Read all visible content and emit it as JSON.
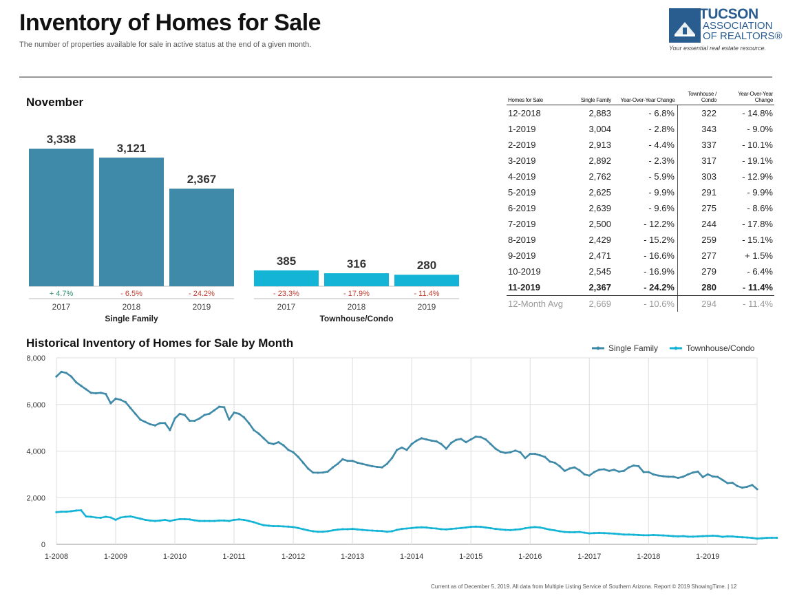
{
  "header": {
    "title": "Inventory of Homes for Sale",
    "subtitle": "The number of properties available for sale in active status at the end of a given month.",
    "logo": {
      "line1": "TUCSON",
      "line2": "ASSOCIATION",
      "line3": "OF REALTORS®",
      "tagline": "Your essential real estate resource."
    }
  },
  "colors": {
    "single_family": "#3e8aa8",
    "townhouse": "#14b4d6",
    "grid": "#dddddd"
  },
  "bar_section": {
    "month": "November"
  },
  "table": {
    "headers": [
      "Homes for Sale",
      "Single Family",
      "Year-Over-Year Change",
      "Townhouse / Condo",
      "Year-Over-Year Change"
    ],
    "rows": [
      [
        "12-2018",
        "2,883",
        "- 6.8%",
        "322",
        "- 14.8%"
      ],
      [
        "1-2019",
        "3,004",
        "- 2.8%",
        "343",
        "- 9.0%"
      ],
      [
        "2-2019",
        "2,913",
        "- 4.4%",
        "337",
        "- 10.1%"
      ],
      [
        "3-2019",
        "2,892",
        "- 2.3%",
        "317",
        "- 19.1%"
      ],
      [
        "4-2019",
        "2,762",
        "- 5.9%",
        "303",
        "- 12.9%"
      ],
      [
        "5-2019",
        "2,625",
        "- 9.9%",
        "291",
        "- 9.9%"
      ],
      [
        "6-2019",
        "2,639",
        "- 9.6%",
        "275",
        "- 8.6%"
      ],
      [
        "7-2019",
        "2,500",
        "- 12.2%",
        "244",
        "- 17.8%"
      ],
      [
        "8-2019",
        "2,429",
        "- 15.2%",
        "259",
        "- 15.1%"
      ],
      [
        "9-2019",
        "2,471",
        "- 16.6%",
        "277",
        "+ 1.5%"
      ],
      [
        "10-2019",
        "2,545",
        "- 16.9%",
        "279",
        "- 6.4%"
      ],
      [
        "11-2019",
        "2,367",
        "- 24.2%",
        "280",
        "- 11.4%"
      ]
    ],
    "avg_row": [
      "12-Month Avg",
      "2,669",
      "- 10.6%",
      "294",
      "- 11.4%"
    ]
  },
  "chart_data": [
    {
      "type": "bar",
      "title": "November",
      "ylim": [
        0,
        3600
      ],
      "groups": [
        {
          "name": "Single Family",
          "color": "#3e8aa8",
          "categories": [
            "2017",
            "2018",
            "2019"
          ],
          "values": [
            3338,
            3121,
            2367
          ],
          "value_labels": [
            "3,338",
            "3,121",
            "2,367"
          ],
          "changes": [
            "+ 4.7%",
            "- 6.5%",
            "- 24.2%"
          ]
        },
        {
          "name": "Townhouse/Condo",
          "color": "#14b4d6",
          "categories": [
            "2017",
            "2018",
            "2019"
          ],
          "values": [
            385,
            316,
            280
          ],
          "value_labels": [
            "385",
            "316",
            "280"
          ],
          "changes": [
            "- 23.3%",
            "- 17.9%",
            "- 11.4%"
          ]
        }
      ]
    },
    {
      "type": "line",
      "title": "Historical Inventory of Homes for Sale by Month",
      "ylim": [
        0,
        8000
      ],
      "yticks": [
        0,
        2000,
        4000,
        6000,
        8000
      ],
      "ytick_labels": [
        "0",
        "2,000",
        "4,000",
        "6,000",
        "8,000"
      ],
      "xtick_labels": [
        "1-2008",
        "1-2009",
        "1-2010",
        "1-2011",
        "1-2012",
        "1-2013",
        "1-2014",
        "1-2015",
        "1-2016",
        "1-2017",
        "1-2018",
        "1-2019"
      ],
      "x_start": "1-2008",
      "legend": "top-right",
      "grid": true,
      "series": [
        {
          "name": "Single Family",
          "color": "#3e8aa8",
          "values": [
            7200,
            7400,
            7350,
            7200,
            6950,
            6800,
            6650,
            6500,
            6480,
            6500,
            6450,
            6050,
            6250,
            6200,
            6100,
            5850,
            5600,
            5350,
            5250,
            5150,
            5100,
            5200,
            5200,
            4900,
            5400,
            5600,
            5550,
            5300,
            5300,
            5400,
            5550,
            5600,
            5750,
            5900,
            5880,
            5350,
            5650,
            5600,
            5450,
            5200,
            4900,
            4750,
            4550,
            4350,
            4300,
            4380,
            4250,
            4050,
            3950,
            3750,
            3500,
            3250,
            3080,
            3070,
            3080,
            3120,
            3300,
            3450,
            3650,
            3580,
            3580,
            3500,
            3450,
            3400,
            3350,
            3320,
            3300,
            3450,
            3700,
            4050,
            4150,
            4050,
            4300,
            4450,
            4550,
            4500,
            4450,
            4420,
            4300,
            4100,
            4350,
            4480,
            4520,
            4380,
            4500,
            4620,
            4600,
            4500,
            4300,
            4100,
            3970,
            3920,
            3950,
            4020,
            3950,
            3700,
            3880,
            3880,
            3820,
            3750,
            3550,
            3500,
            3350,
            3150,
            3250,
            3300,
            3180,
            3000,
            2950,
            3100,
            3200,
            3220,
            3150,
            3200,
            3120,
            3150,
            3300,
            3380,
            3350,
            3100,
            3100,
            3000,
            2950,
            2920,
            2900,
            2900,
            2850,
            2900,
            3000,
            3080,
            3120,
            2883,
            3004,
            2913,
            2892,
            2762,
            2625,
            2639,
            2500,
            2429,
            2471,
            2545,
            2367
          ]
        },
        {
          "name": "Townhouse/Condo",
          "color": "#14b4d6",
          "values": [
            1380,
            1400,
            1400,
            1420,
            1450,
            1460,
            1200,
            1180,
            1150,
            1140,
            1180,
            1150,
            1050,
            1150,
            1180,
            1200,
            1150,
            1100,
            1050,
            1020,
            1000,
            1020,
            1050,
            1000,
            1050,
            1080,
            1080,
            1070,
            1030,
            1000,
            1000,
            1000,
            1000,
            1020,
            1020,
            1000,
            1050,
            1070,
            1050,
            1000,
            950,
            880,
            820,
            800,
            780,
            780,
            770,
            760,
            740,
            700,
            650,
            600,
            560,
            540,
            540,
            560,
            600,
            630,
            650,
            650,
            660,
            640,
            620,
            600,
            590,
            580,
            570,
            540,
            560,
            620,
            660,
            680,
            700,
            720,
            730,
            720,
            690,
            680,
            650,
            640,
            660,
            680,
            700,
            720,
            750,
            760,
            750,
            720,
            690,
            660,
            640,
            620,
            610,
            630,
            650,
            690,
            720,
            740,
            720,
            680,
            630,
            600,
            560,
            530,
            520,
            520,
            530,
            500,
            470,
            480,
            490,
            480,
            470,
            460,
            440,
            420,
            420,
            410,
            400,
            390,
            390,
            400,
            390,
            380,
            370,
            350,
            340,
            350,
            330,
            330,
            340,
            350,
            360,
            370,
            360,
            322,
            343,
            337,
            317,
            303,
            291,
            275,
            244,
            259,
            277,
            279,
            280
          ]
        }
      ]
    }
  ],
  "footer": {
    "note": "Current as of December 5, 2019. All data from Multiple Listing Service of Southern Arizona. Report © 2019 ShowingTime.  |  12"
  }
}
